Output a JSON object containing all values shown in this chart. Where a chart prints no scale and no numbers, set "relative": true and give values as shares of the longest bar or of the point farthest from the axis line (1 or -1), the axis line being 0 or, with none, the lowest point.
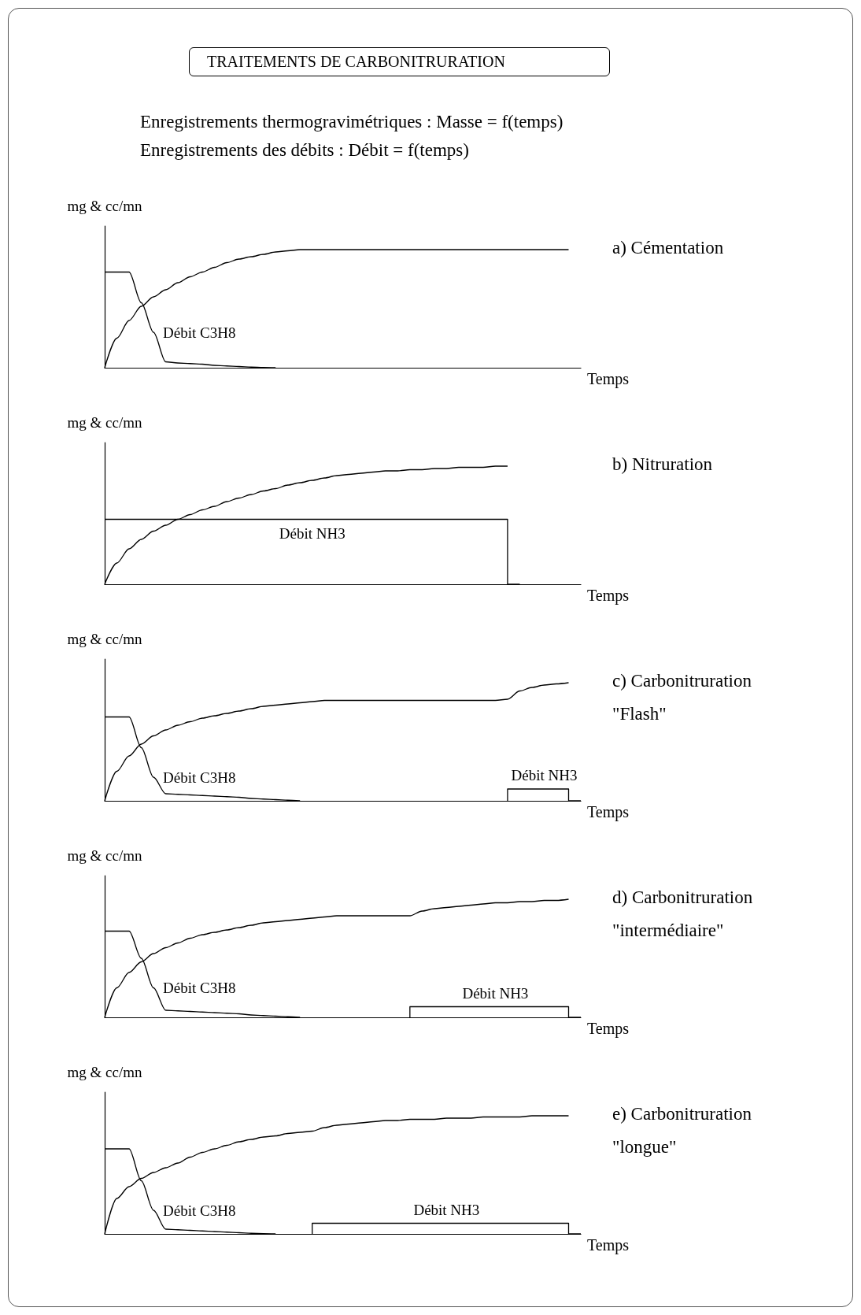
{
  "chart_data": [
    {
      "type": "other",
      "title": "TRAITEMENTS DE CARBONITRURATION",
      "annotations": [
        "Enregistrements thermogravimétriques : Masse = f(temps)",
        "Enregistrements des débits : Débit = f(temps)"
      ]
    },
    {
      "type": "line",
      "annotations": [
        "a) Cémentation"
      ],
      "xlabel": "Temps",
      "ylabel": "mg & cc/mn",
      "relative": true,
      "marker": "none",
      "categories": [
        null,
        null,
        null,
        null,
        null,
        null,
        null,
        null,
        null,
        null,
        null,
        null,
        null,
        null,
        null,
        null,
        null,
        null,
        null,
        null,
        null,
        null,
        null,
        null,
        null,
        null,
        null,
        null,
        null,
        null,
        null,
        null,
        null,
        null,
        null,
        null,
        null,
        null,
        null,
        null
      ],
      "series": [
        {
          "color": "#000000",
          "values": [
            0,
            0.25,
            0.4,
            0.52,
            0.6,
            0.66,
            0.72,
            0.77,
            0.81,
            0.85,
            0.89,
            0.92,
            0.94,
            0.96,
            0.98,
            0.99,
            1,
            1,
            1,
            1,
            1,
            1,
            1,
            1,
            1,
            1,
            1,
            1,
            1,
            1,
            1,
            1,
            1,
            1,
            1,
            1,
            1,
            1,
            1,
            null
          ]
        },
        {
          "name": "Débit C3H8",
          "color": "#000000",
          "values": [
            0.81,
            0.81,
            0.81,
            0.55,
            0.3,
            0.05,
            0.04,
            0.035,
            0.03,
            0.02,
            0.015,
            0.01,
            0.005,
            0.002,
            0,
            null,
            null,
            null,
            null,
            null,
            null,
            null,
            null,
            null,
            null,
            null,
            null,
            null,
            null,
            null,
            null,
            null,
            null,
            null,
            null,
            null,
            null,
            null,
            null,
            null
          ]
        }
      ]
    },
    {
      "type": "line",
      "annotations": [
        "b) Nitruration"
      ],
      "xlabel": "Temps",
      "ylabel": "mg & cc/mn",
      "relative": true,
      "marker": "none",
      "categories": [
        null,
        null,
        null,
        null,
        null,
        null,
        null,
        null,
        null,
        null,
        null,
        null,
        null,
        null,
        null,
        null,
        null,
        null,
        null,
        null,
        null,
        null,
        null,
        null,
        null,
        null,
        null,
        null,
        null,
        null,
        null,
        null,
        null,
        null,
        null,
        null,
        null,
        null,
        null,
        null
      ],
      "series": [
        {
          "color": "#000000",
          "values": [
            0,
            0.18,
            0.3,
            0.38,
            0.45,
            0.5,
            0.55,
            0.59,
            0.63,
            0.66,
            0.7,
            0.73,
            0.76,
            0.79,
            0.81,
            0.84,
            0.86,
            0.88,
            0.9,
            0.92,
            0.93,
            0.94,
            0.95,
            0.96,
            0.96,
            0.97,
            0.97,
            0.98,
            0.98,
            0.99,
            0.99,
            0.99,
            1,
            1,
            null,
            null,
            null,
            null,
            null,
            null
          ]
        },
        {
          "name": "Débit NH3",
          "type": "step",
          "color": "#000000",
          "values": [
            0.55,
            0.55,
            0.55,
            0.55,
            0.55,
            0.55,
            0.55,
            0.55,
            0.55,
            0.55,
            0.55,
            0.55,
            0.55,
            0.55,
            0.55,
            0.55,
            0.55,
            0.55,
            0.55,
            0.55,
            0.55,
            0.55,
            0.55,
            0.55,
            0.55,
            0.55,
            0.55,
            0.55,
            0.55,
            0.55,
            0.55,
            0.55,
            0.55,
            0.55,
            0,
            null,
            null,
            null,
            null,
            null
          ]
        }
      ]
    },
    {
      "type": "line",
      "annotations": [
        "c) Carbonitruration \"Flash\""
      ],
      "xlabel": "Temps",
      "ylabel": "mg & cc/mn",
      "relative": true,
      "marker": "none",
      "categories": [
        null,
        null,
        null,
        null,
        null,
        null,
        null,
        null,
        null,
        null,
        null,
        null,
        null,
        null,
        null,
        null,
        null,
        null,
        null,
        null,
        null,
        null,
        null,
        null,
        null,
        null,
        null,
        null,
        null,
        null,
        null,
        null,
        null,
        null,
        null,
        null,
        null,
        null,
        null,
        null
      ],
      "series": [
        {
          "color": "#000000",
          "values": [
            0,
            0.25,
            0.38,
            0.48,
            0.55,
            0.6,
            0.64,
            0.67,
            0.7,
            0.72,
            0.74,
            0.76,
            0.78,
            0.8,
            0.81,
            0.82,
            0.83,
            0.84,
            0.85,
            0.85,
            0.85,
            0.85,
            0.85,
            0.85,
            0.85,
            0.85,
            0.85,
            0.85,
            0.85,
            0.85,
            0.85,
            0.85,
            0.85,
            0.86,
            0.93,
            0.96,
            0.98,
            0.99,
            1,
            null
          ]
        },
        {
          "name": "Débit C3H8",
          "color": "#000000",
          "values": [
            0.71,
            0.71,
            0.71,
            0.45,
            0.2,
            0.06,
            0.055,
            0.05,
            0.045,
            0.04,
            0.035,
            0.03,
            0.02,
            0.015,
            0.01,
            0.005,
            0,
            null,
            null,
            null,
            null,
            null,
            null,
            null,
            null,
            null,
            null,
            null,
            null,
            null,
            null,
            null,
            null,
            null,
            null,
            null,
            null,
            null,
            null,
            null
          ]
        },
        {
          "name": "Débit NH3",
          "type": "step",
          "color": "#000000",
          "values": [
            null,
            null,
            null,
            null,
            null,
            null,
            null,
            null,
            null,
            null,
            null,
            null,
            null,
            null,
            null,
            null,
            null,
            null,
            null,
            null,
            null,
            null,
            null,
            null,
            null,
            null,
            null,
            null,
            null,
            null,
            null,
            null,
            null,
            0,
            0.1,
            0.1,
            0.1,
            0.1,
            0.1,
            0
          ]
        }
      ]
    },
    {
      "type": "line",
      "annotations": [
        "d) Carbonitruration \"intermédiaire\""
      ],
      "xlabel": "Temps",
      "ylabel": "mg & cc/mn",
      "relative": true,
      "marker": "none",
      "categories": [
        null,
        null,
        null,
        null,
        null,
        null,
        null,
        null,
        null,
        null,
        null,
        null,
        null,
        null,
        null,
        null,
        null,
        null,
        null,
        null,
        null,
        null,
        null,
        null,
        null,
        null,
        null,
        null,
        null,
        null,
        null,
        null,
        null,
        null,
        null,
        null,
        null,
        null,
        null,
        null
      ],
      "series": [
        {
          "color": "#000000",
          "values": [
            0,
            0.25,
            0.38,
            0.47,
            0.54,
            0.59,
            0.63,
            0.67,
            0.7,
            0.72,
            0.74,
            0.76,
            0.78,
            0.8,
            0.81,
            0.82,
            0.83,
            0.84,
            0.85,
            0.86,
            0.86,
            0.86,
            0.86,
            0.86,
            0.86,
            0.86,
            0.9,
            0.92,
            0.93,
            0.94,
            0.95,
            0.96,
            0.97,
            0.97,
            0.98,
            0.98,
            0.99,
            0.99,
            1,
            null
          ]
        },
        {
          "name": "Débit C3H8",
          "color": "#000000",
          "values": [
            0.73,
            0.73,
            0.73,
            0.5,
            0.25,
            0.06,
            0.055,
            0.05,
            0.045,
            0.04,
            0.035,
            0.03,
            0.02,
            0.015,
            0.01,
            0.005,
            0,
            null,
            null,
            null,
            null,
            null,
            null,
            null,
            null,
            null,
            null,
            null,
            null,
            null,
            null,
            null,
            null,
            null,
            null,
            null,
            null,
            null,
            null,
            null
          ]
        },
        {
          "name": "Débit NH3",
          "type": "step",
          "color": "#000000",
          "values": [
            null,
            null,
            null,
            null,
            null,
            null,
            null,
            null,
            null,
            null,
            null,
            null,
            null,
            null,
            null,
            null,
            null,
            null,
            null,
            null,
            null,
            null,
            null,
            null,
            null,
            0,
            0.09,
            0.09,
            0.09,
            0.09,
            0.09,
            0.09,
            0.09,
            0.09,
            0.09,
            0.09,
            0.09,
            0.09,
            0.09,
            0
          ]
        }
      ]
    },
    {
      "type": "line",
      "annotations": [
        "e) Carbonitruration \"longue\""
      ],
      "xlabel": "Temps",
      "ylabel": "mg & cc/mn",
      "relative": true,
      "marker": "none",
      "categories": [
        null,
        null,
        null,
        null,
        null,
        null,
        null,
        null,
        null,
        null,
        null,
        null,
        null,
        null,
        null,
        null,
        null,
        null,
        null,
        null,
        null,
        null,
        null,
        null,
        null,
        null,
        null,
        null,
        null,
        null,
        null,
        null,
        null,
        null,
        null,
        null,
        null,
        null,
        null,
        null
      ],
      "series": [
        {
          "color": "#000000",
          "values": [
            0,
            0.3,
            0.4,
            0.47,
            0.52,
            0.56,
            0.6,
            0.65,
            0.69,
            0.72,
            0.75,
            0.78,
            0.8,
            0.82,
            0.83,
            0.85,
            0.86,
            0.87,
            0.9,
            0.92,
            0.93,
            0.94,
            0.95,
            0.96,
            0.96,
            0.97,
            0.97,
            0.97,
            0.98,
            0.98,
            0.98,
            0.99,
            0.99,
            0.99,
            0.99,
            1,
            1,
            1,
            1,
            null
          ]
        },
        {
          "name": "Débit C3H8",
          "color": "#000000",
          "values": [
            0.72,
            0.72,
            0.72,
            0.45,
            0.2,
            0.04,
            0.035,
            0.03,
            0.025,
            0.02,
            0.015,
            0.01,
            0.005,
            0.003,
            0,
            null,
            null,
            null,
            null,
            null,
            null,
            null,
            null,
            null,
            null,
            null,
            null,
            null,
            null,
            null,
            null,
            null,
            null,
            null,
            null,
            null,
            null,
            null,
            null,
            null
          ]
        },
        {
          "name": "Débit NH3",
          "type": "step",
          "color": "#000000",
          "values": [
            null,
            null,
            null,
            null,
            null,
            null,
            null,
            null,
            null,
            null,
            null,
            null,
            null,
            null,
            null,
            null,
            null,
            0,
            0.09,
            0.09,
            0.09,
            0.09,
            0.09,
            0.09,
            0.09,
            0.09,
            0.09,
            0.09,
            0.09,
            0.09,
            0.09,
            0.09,
            0.09,
            0.09,
            0.09,
            0.09,
            0.09,
            0.09,
            0.09,
            0
          ]
        }
      ]
    }
  ]
}
